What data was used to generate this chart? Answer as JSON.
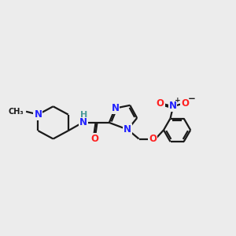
{
  "background_color": "#ececec",
  "bond_color": "#1a1a1a",
  "nitrogen_color": "#2020ff",
  "oxygen_color": "#ff2020",
  "nh_color": "#4a9999",
  "h_color": "#4a9999",
  "line_width": 1.6,
  "font_size": 8.5,
  "fig_width": 3.0,
  "fig_height": 3.0,
  "xlim": [
    0,
    10
  ],
  "ylim": [
    0,
    10
  ]
}
